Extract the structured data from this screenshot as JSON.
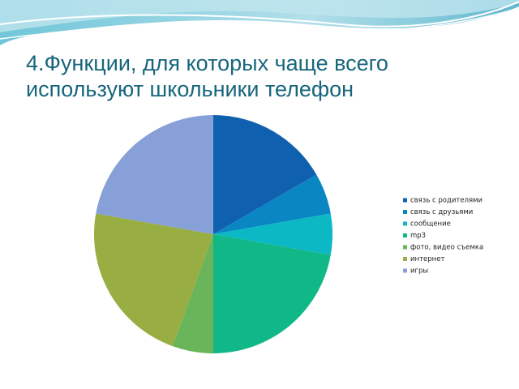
{
  "chart_data": {
    "type": "pie",
    "title": "4.Функции, для которых чаще всего используют школьники телефон",
    "categories": [
      "связь с родителями",
      "связь с друзьями",
      "сообщение",
      "mp3",
      "фото, видео съемка",
      "интернет",
      "игры"
    ],
    "values": [
      3,
      1,
      1,
      4,
      1,
      4,
      4
    ],
    "colors": [
      "#1060b0",
      "#0a86c2",
      "#0bb8c4",
      "#10b888",
      "#6ab45a",
      "#98ae42",
      "#88a0d8"
    ],
    "legend": "right"
  }
}
